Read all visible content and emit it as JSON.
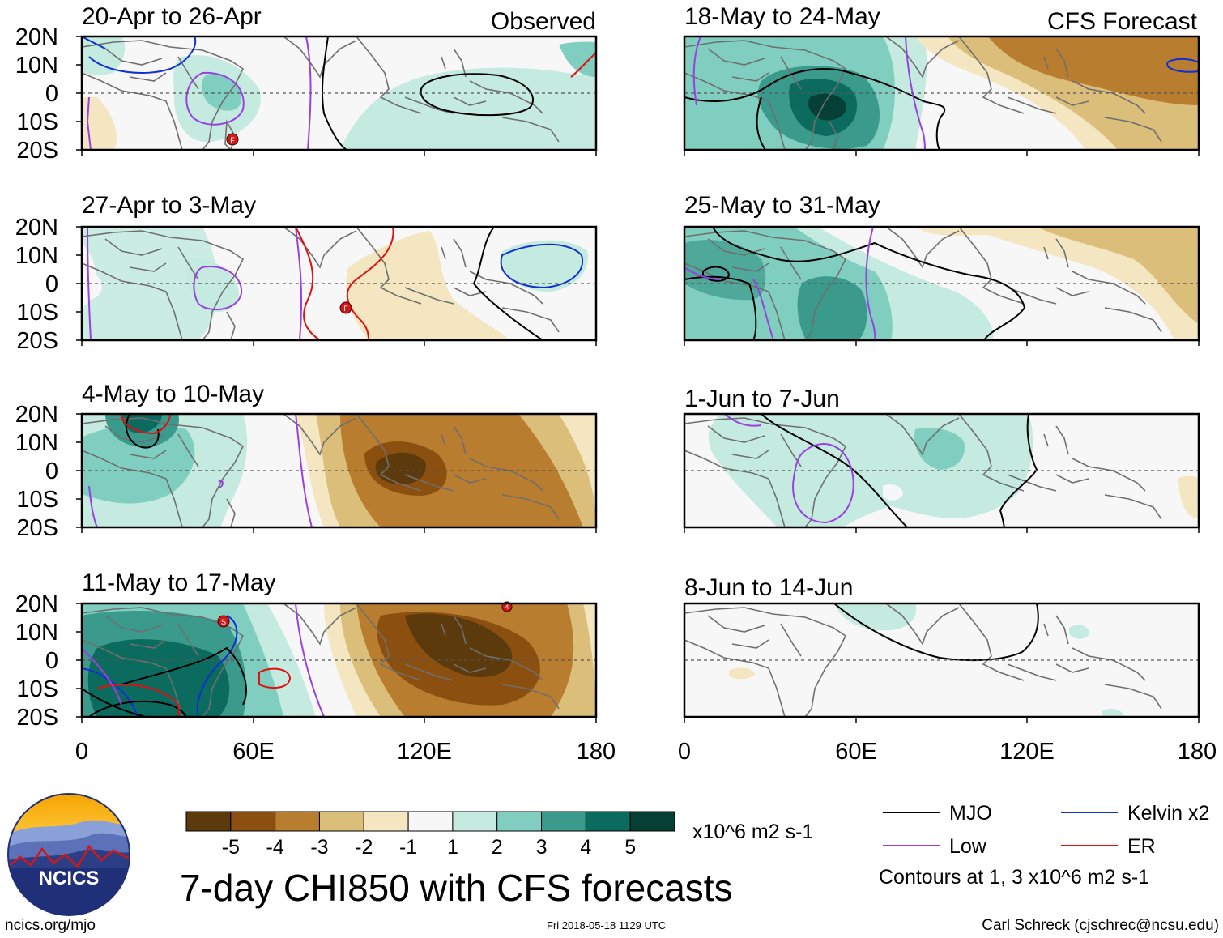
{
  "figure": {
    "title": "7-day CHI850 with CFS forecasts",
    "timestamp": "Fri 2018-05-18 1129 UTC",
    "website": "ncics.org/mjo",
    "credit": "Carl Schreck (cjschrec@ncsu.edu)",
    "logo_text": "NCICS"
  },
  "column_labels": {
    "left": "Observed",
    "right": "CFS Forecast"
  },
  "axes": {
    "y_ticks": [
      "20N",
      "10N",
      "0",
      "10S",
      "20S"
    ],
    "x_ticks": [
      "0",
      "60E",
      "120E",
      "180"
    ]
  },
  "panels": [
    {
      "id": "p1",
      "title": "20-Apr to 26-Apr"
    },
    {
      "id": "p2",
      "title": "27-Apr to 3-May"
    },
    {
      "id": "p3",
      "title": "4-May to 10-May"
    },
    {
      "id": "p4",
      "title": "11-May to 17-May"
    },
    {
      "id": "p5",
      "title": "18-May to 24-May"
    },
    {
      "id": "p6",
      "title": "25-May to 31-May"
    },
    {
      "id": "p7",
      "title": "1-Jun to 7-Jun"
    },
    {
      "id": "p8",
      "title": "8-Jun to 14-Jun"
    }
  ],
  "colorbar": {
    "units": "x10^6 m2 s-1",
    "ticks": [
      "-5",
      "-4",
      "-3",
      "-2",
      "-1",
      "1",
      "2",
      "3",
      "4",
      "5"
    ],
    "colors": [
      "#5c3a0c",
      "#8b5010",
      "#b87d2e",
      "#dbbe7a",
      "#f3e6c0",
      "#f7f7f7",
      "#c5eae0",
      "#7fcebf",
      "#3a9a8c",
      "#0b6b5e",
      "#053f35"
    ]
  },
  "legend": {
    "items": [
      {
        "label": "MJO",
        "color": "#000000"
      },
      {
        "label": "Kelvin x2",
        "color": "#1030d0"
      },
      {
        "label": "Low",
        "color": "#9a40e0"
      },
      {
        "label": "ER",
        "color": "#e01010"
      }
    ],
    "note": "Contours at 1, 3 x10^6 m2 s-1"
  },
  "storm_markers": [
    "F",
    "F",
    "S",
    "4"
  ]
}
